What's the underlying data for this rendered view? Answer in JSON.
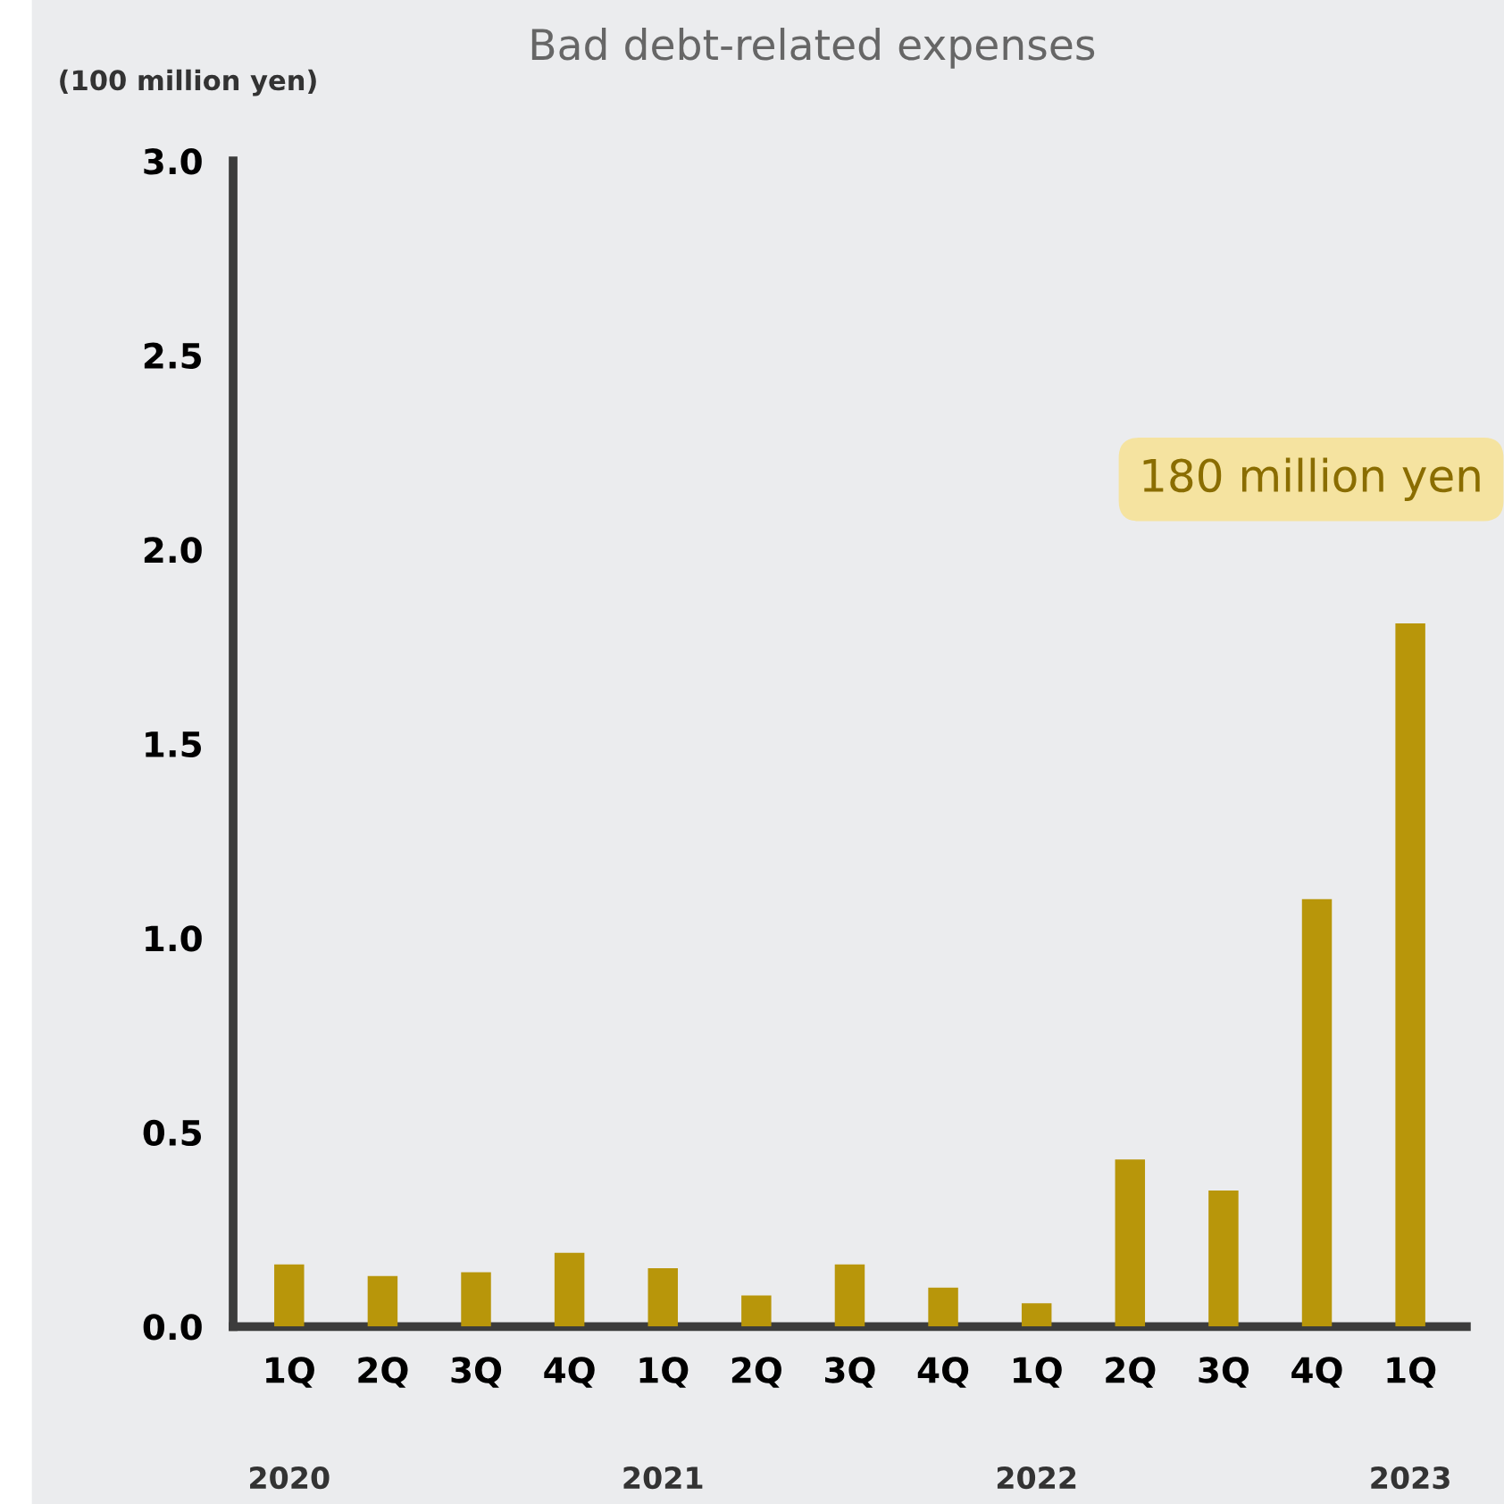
{
  "chart_data": {
    "type": "bar",
    "title": "Bad debt-related expenses",
    "ylabel": "(100 million yen)",
    "categories": [
      "1Q",
      "2Q",
      "3Q",
      "4Q",
      "1Q",
      "2Q",
      "3Q",
      "4Q",
      "1Q",
      "2Q",
      "3Q",
      "4Q",
      "1Q"
    ],
    "values": [
      0.16,
      0.13,
      0.14,
      0.19,
      0.15,
      0.08,
      0.16,
      0.1,
      0.06,
      0.43,
      0.35,
      1.1,
      1.81
    ],
    "color": "#b8960a",
    "ylim": [
      0,
      3.0
    ],
    "yticks": [
      {
        "value": 0,
        "label": "0.0"
      },
      {
        "value": 0.5,
        "label": "0.5"
      },
      {
        "value": 1.0,
        "label": "1.0"
      },
      {
        "value": 1.5,
        "label": "1.5"
      },
      {
        "value": 2.0,
        "label": "2.0"
      },
      {
        "value": 2.5,
        "label": "2.5"
      },
      {
        "value": 3.0,
        "label": "3.0"
      }
    ],
    "annotations": [
      "2020",
      "2021",
      "2022",
      "2023",
      "180 million yen"
    ],
    "grid": false,
    "legend": false
  }
}
